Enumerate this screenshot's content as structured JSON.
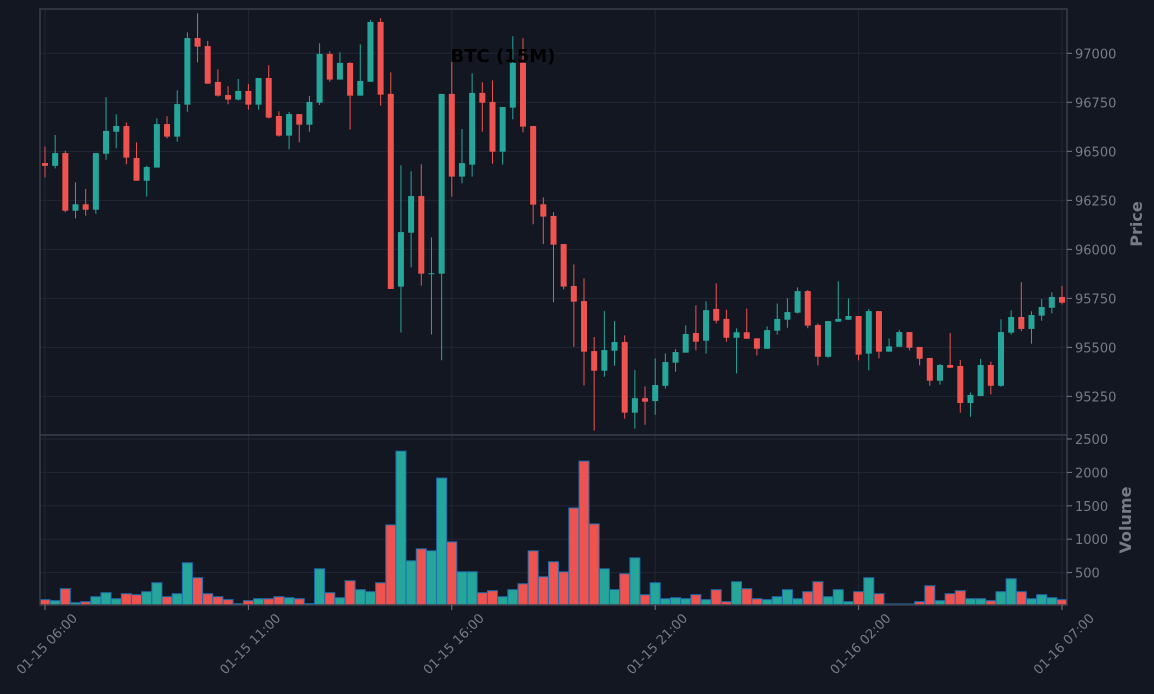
{
  "chart_data": {
    "type": "candlestick",
    "title": "BTC (15M)",
    "ylabel_price": "Price",
    "ylabel_volume": "Volume",
    "colors": {
      "background": "#131722",
      "up": "#26a69a",
      "down": "#ef5350",
      "grid": "#232734",
      "volume_edge": "#1f6fb0",
      "text": "#787b86",
      "frame": "#3a3e4a"
    },
    "price_ylim": [
      95053,
      97226
    ],
    "volume_ylim": [
      0,
      2560
    ],
    "price_ticks": [
      95250,
      95500,
      95750,
      96000,
      96250,
      96500,
      96750,
      97000
    ],
    "volume_ticks": [
      500,
      1000,
      1500,
      2000,
      2500
    ],
    "x_ticks": [
      {
        "index": 0,
        "label": "01-15 06:00"
      },
      {
        "index": 20,
        "label": "01-15 11:00"
      },
      {
        "index": 40,
        "label": "01-15 16:00"
      },
      {
        "index": 60,
        "label": "01-15 21:00"
      },
      {
        "index": 80,
        "label": "01-16 02:00"
      },
      {
        "index": 100,
        "label": "01-16 07:00"
      }
    ],
    "grid": true,
    "ohlc": [
      [
        96440,
        96524,
        96367,
        96426
      ],
      [
        96426,
        96583,
        96413,
        96491
      ],
      [
        96491,
        96503,
        96189,
        96197
      ],
      [
        96197,
        96342,
        96158,
        96230
      ],
      [
        96230,
        96308,
        96172,
        96202
      ],
      [
        96202,
        96491,
        96182,
        96491
      ],
      [
        96488,
        96776,
        96457,
        96604
      ],
      [
        96600,
        96689,
        96515,
        96629
      ],
      [
        96629,
        96648,
        96434,
        96468
      ],
      [
        96466,
        96546,
        96350,
        96350
      ],
      [
        96350,
        96427,
        96269,
        96420
      ],
      [
        96417,
        96668,
        96417,
        96639
      ],
      [
        96639,
        96679,
        96566,
        96575
      ],
      [
        96575,
        96811,
        96549,
        96741
      ],
      [
        96738,
        97107,
        96702,
        97078
      ],
      [
        97078,
        97204,
        96954,
        97034
      ],
      [
        97037,
        97063,
        96845,
        96845
      ],
      [
        96854,
        96918,
        96779,
        96784
      ],
      [
        96787,
        96832,
        96740,
        96764
      ],
      [
        96764,
        96869,
        96759,
        96808
      ],
      [
        96808,
        96844,
        96713,
        96738
      ],
      [
        96738,
        96874,
        96713,
        96874
      ],
      [
        96874,
        96939,
        96667,
        96672
      ],
      [
        96680,
        96704,
        96575,
        96580
      ],
      [
        96580,
        96701,
        96510,
        96690
      ],
      [
        96690,
        96690,
        96546,
        96636
      ],
      [
        96636,
        96782,
        96600,
        96752
      ],
      [
        96748,
        97051,
        96736,
        96997
      ],
      [
        96997,
        97010,
        96855,
        96866
      ],
      [
        96866,
        97005,
        96866,
        96951
      ],
      [
        96951,
        96954,
        96611,
        96784
      ],
      [
        96784,
        97046,
        96784,
        96859
      ],
      [
        96855,
        97170,
        96855,
        97160
      ],
      [
        97160,
        97179,
        96733,
        96789
      ],
      [
        96793,
        96903,
        95798,
        95798
      ],
      [
        95810,
        96429,
        95575,
        96088
      ],
      [
        96085,
        96398,
        95908,
        96272
      ],
      [
        96272,
        96434,
        95815,
        95876
      ],
      [
        95878,
        96061,
        95566,
        95878
      ],
      [
        95876,
        96793,
        95434,
        96793
      ],
      [
        96793,
        96957,
        96269,
        96371
      ],
      [
        96371,
        96614,
        96337,
        96440
      ],
      [
        96432,
        96898,
        96371,
        96798
      ],
      [
        96798,
        96852,
        96600,
        96748
      ],
      [
        96752,
        96862,
        96437,
        96498
      ],
      [
        96498,
        96726,
        96432,
        96726
      ],
      [
        96723,
        97087,
        96663,
        96951
      ],
      [
        96951,
        97077,
        96597,
        96626
      ],
      [
        96629,
        96629,
        96128,
        96228
      ],
      [
        96230,
        96265,
        96027,
        96167
      ],
      [
        96170,
        96189,
        95730,
        96024
      ],
      [
        96027,
        96027,
        95796,
        95810
      ],
      [
        95813,
        95923,
        95503,
        95733
      ],
      [
        95736,
        95852,
        95306,
        95478
      ],
      [
        95481,
        95553,
        95075,
        95381
      ],
      [
        95381,
        95685,
        95350,
        95486
      ],
      [
        95483,
        95634,
        95406,
        95527
      ],
      [
        95527,
        95561,
        95136,
        95167
      ],
      [
        95167,
        95384,
        95085,
        95241
      ],
      [
        95241,
        95301,
        95105,
        95223
      ],
      [
        95226,
        95444,
        95156,
        95308
      ],
      [
        95304,
        95469,
        95290,
        95425
      ],
      [
        95422,
        95491,
        95376,
        95476
      ],
      [
        95473,
        95612,
        95473,
        95568
      ],
      [
        95573,
        95714,
        95485,
        95529
      ],
      [
        95534,
        95735,
        95468,
        95690
      ],
      [
        95696,
        95827,
        95622,
        95636
      ],
      [
        95645,
        95692,
        95529,
        95549
      ],
      [
        95549,
        95597,
        95367,
        95577
      ],
      [
        95577,
        95697,
        95544,
        95544
      ],
      [
        95546,
        95546,
        95459,
        95493
      ],
      [
        95493,
        95607,
        95493,
        95588
      ],
      [
        95585,
        95724,
        95565,
        95645
      ],
      [
        95641,
        95750,
        95600,
        95680
      ],
      [
        95677,
        95806,
        95673,
        95787
      ],
      [
        95787,
        95793,
        95598,
        95611
      ],
      [
        95614,
        95622,
        95408,
        95452
      ],
      [
        95452,
        95634,
        95447,
        95634
      ],
      [
        95631,
        95837,
        95631,
        95645
      ],
      [
        95641,
        95750,
        95641,
        95660
      ],
      [
        95660,
        95660,
        95434,
        95463
      ],
      [
        95468,
        95696,
        95383,
        95685
      ],
      [
        95685,
        95685,
        95444,
        95478
      ],
      [
        95478,
        95546,
        95478,
        95505
      ],
      [
        95503,
        95588,
        95503,
        95578
      ],
      [
        95578,
        95578,
        95485,
        95498
      ],
      [
        95502,
        95502,
        95408,
        95442
      ],
      [
        95446,
        95446,
        95304,
        95330
      ],
      [
        95330,
        95415,
        95310,
        95410
      ],
      [
        95410,
        95573,
        95396,
        95396
      ],
      [
        95405,
        95435,
        95167,
        95216
      ],
      [
        95216,
        95270,
        95146,
        95257
      ],
      [
        95252,
        95441,
        95252,
        95410
      ],
      [
        95410,
        95427,
        95260,
        95304
      ],
      [
        95304,
        95643,
        95299,
        95578
      ],
      [
        95575,
        95689,
        95565,
        95655
      ],
      [
        95655,
        95832,
        95582,
        95594
      ],
      [
        95594,
        95684,
        95519,
        95665
      ],
      [
        95662,
        95747,
        95636,
        95706
      ],
      [
        95702,
        95781,
        95673,
        95757
      ],
      [
        95757,
        95813,
        95719,
        95728
      ]
    ],
    "volume": [
      95,
      80,
      259,
      50,
      65,
      139,
      199,
      109,
      184,
      169,
      214,
      348,
      139,
      184,
      647,
      423,
      184,
      139,
      95,
      35,
      80,
      109,
      109,
      139,
      124,
      109,
      35,
      557,
      199,
      124,
      378,
      244,
      214,
      348,
      1214,
      2318,
      677,
      856,
      826,
      1915,
      960,
      512,
      512,
      199,
      229,
      139,
      244,
      333,
      826,
      438,
      662,
      512,
      1468,
      2169,
      1229,
      557,
      244,
      483,
      721,
      169,
      348,
      109,
      124,
      109,
      169,
      95,
      244,
      65,
      363,
      259,
      109,
      95,
      139,
      244,
      109,
      214,
      363,
      139,
      244,
      65,
      214,
      423,
      184,
      20,
      15,
      5,
      65,
      303,
      80,
      184,
      229,
      109,
      109,
      80,
      214,
      408,
      214,
      109,
      169,
      124,
      95
    ]
  }
}
